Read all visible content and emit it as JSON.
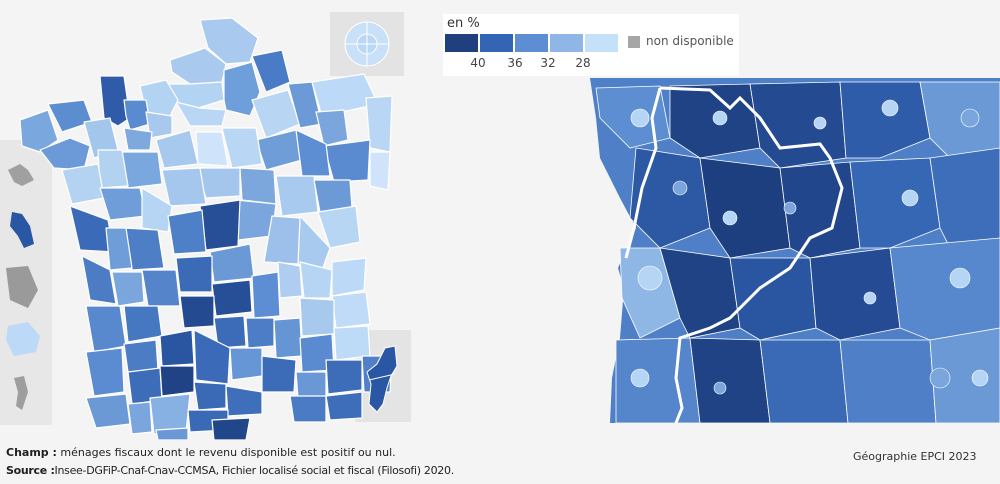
{
  "legend": {
    "title": "en %",
    "ticks": [
      "40",
      "36",
      "32",
      "28"
    ],
    "na_label": "non disponible",
    "colors": [
      "#1f3f7e",
      "#3464b4",
      "#5d8dd2",
      "#8fb6e6",
      "#c5e0f9"
    ],
    "na_color": "#a6a6a6"
  },
  "notes": {
    "champ_label": "Champ :",
    "champ_text": " ménages fiscaux dont le revenu disponible est positif ou nul.",
    "source_label": "Source :",
    "source_text": "Insee-DGFiP-Cnaf-Cnav-CCMSA, Fichier localisé social et fiscal (Filosofi) 2020.",
    "geography": "Géographie EPCI 2023"
  }
}
